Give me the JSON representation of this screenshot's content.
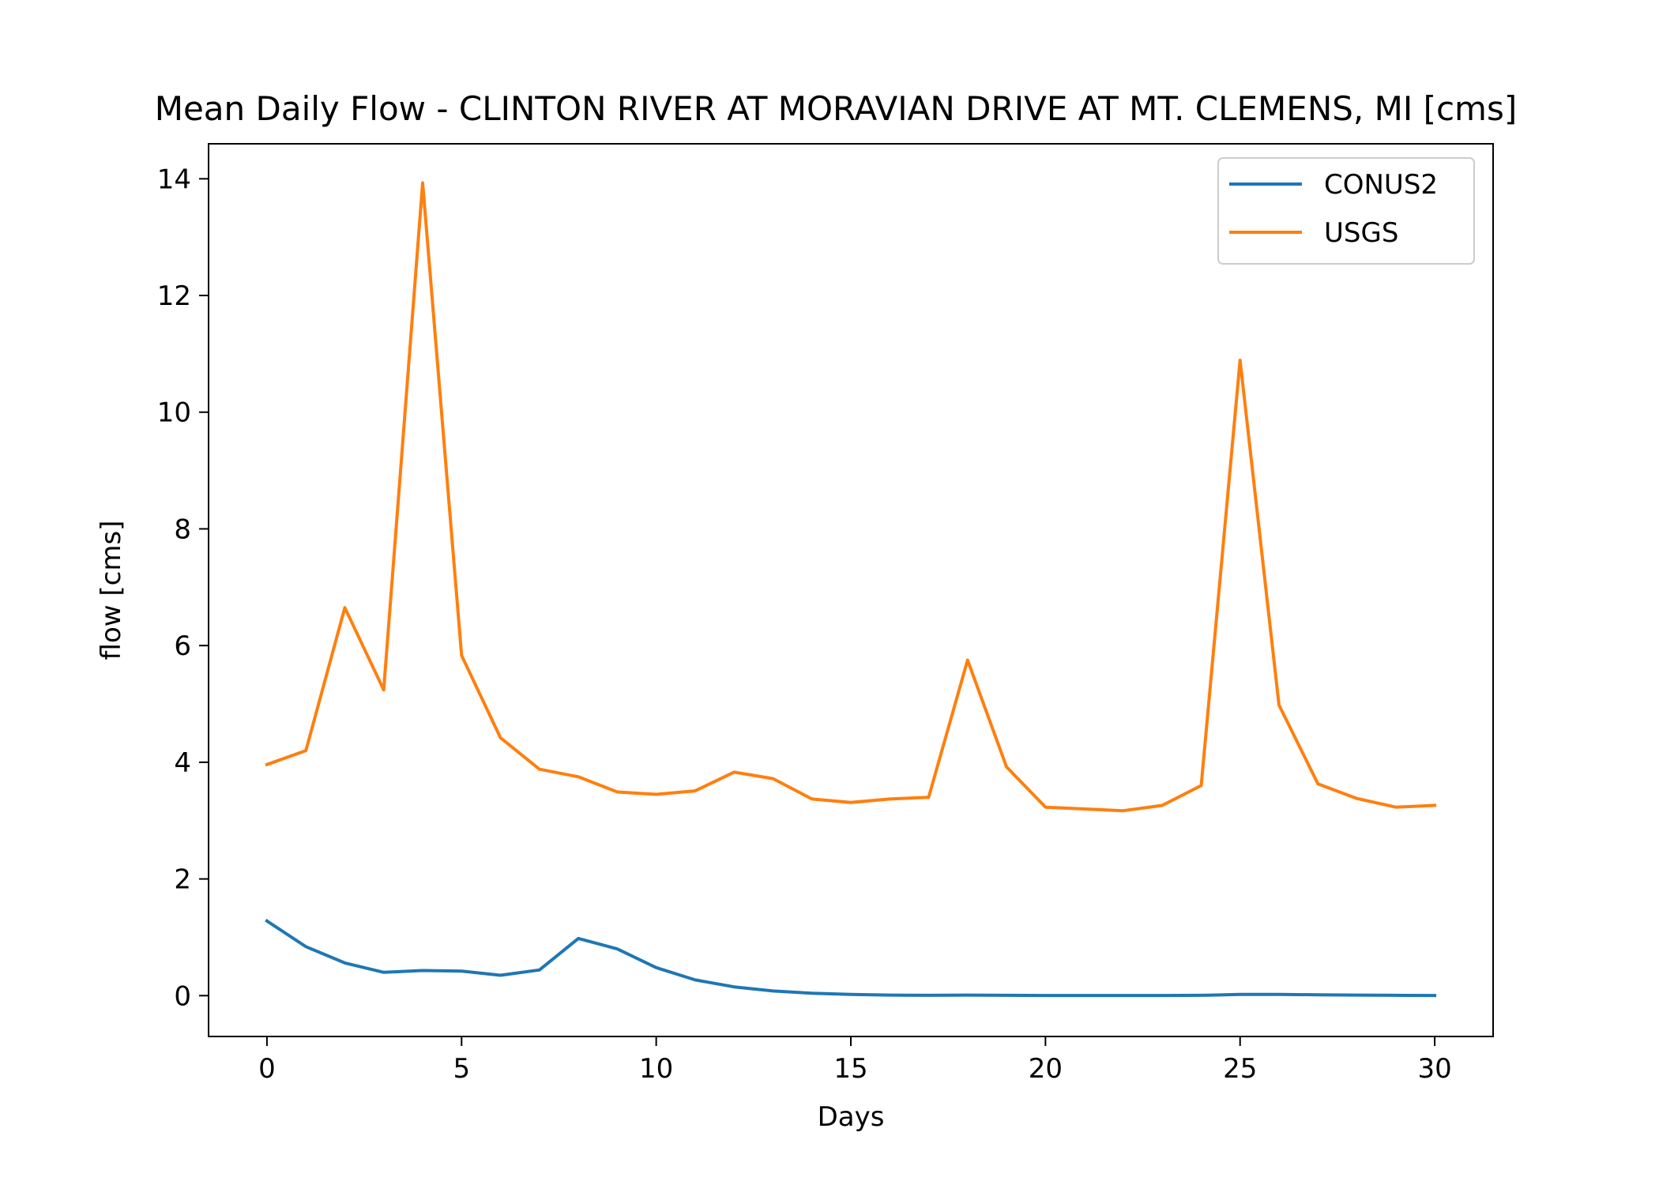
{
  "chart_data": {
    "type": "line",
    "title": "Mean Daily Flow - CLINTON RIVER AT MORAVIAN DRIVE AT MT. CLEMENS, MI [cms]",
    "xlabel": "Days",
    "ylabel": "flow [cms]",
    "xlim": [
      -1.5,
      31.5
    ],
    "ylim": [
      -0.7,
      14.6
    ],
    "xticks": [
      0,
      5,
      10,
      15,
      20,
      25,
      30
    ],
    "yticks": [
      0,
      2,
      4,
      6,
      8,
      10,
      12,
      14
    ],
    "grid": false,
    "legend_position": "top-right",
    "x": [
      0,
      1,
      2,
      3,
      4,
      5,
      6,
      7,
      8,
      9,
      10,
      11,
      12,
      13,
      14,
      15,
      16,
      17,
      18,
      19,
      20,
      21,
      22,
      23,
      24,
      25,
      26,
      27,
      28,
      29,
      30
    ],
    "series": [
      {
        "name": "CONUS2",
        "color": "#1f77b4",
        "values": [
          1.28,
          0.84,
          0.56,
          0.4,
          0.43,
          0.42,
          0.35,
          0.44,
          0.98,
          0.8,
          0.48,
          0.27,
          0.15,
          0.08,
          0.04,
          0.02,
          0.01,
          0.005,
          0.01,
          0.005,
          0.003,
          0.003,
          0.003,
          0.003,
          0.005,
          0.02,
          0.02,
          0.015,
          0.01,
          0.005,
          0.003
        ]
      },
      {
        "name": "USGS",
        "color": "#ff7f0e",
        "values": [
          3.96,
          4.2,
          6.65,
          5.24,
          13.93,
          5.83,
          4.42,
          3.88,
          3.75,
          3.49,
          3.45,
          3.51,
          3.83,
          3.72,
          3.37,
          3.31,
          3.37,
          3.4,
          5.75,
          3.92,
          3.23,
          3.2,
          3.17,
          3.26,
          3.6,
          10.89,
          4.98,
          3.63,
          3.38,
          3.23,
          3.26
        ]
      }
    ]
  }
}
